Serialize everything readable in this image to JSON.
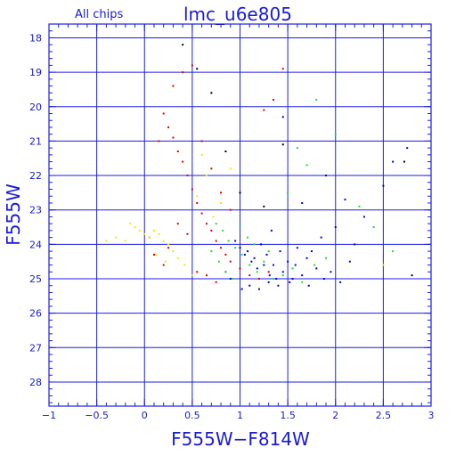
{
  "chart_data": {
    "type": "scatter",
    "title": "lmc_u6e805",
    "subtitle": "All chips",
    "xlabel": "F555W−F814W",
    "ylabel": "F555W",
    "xlim": [
      -1,
      3
    ],
    "ylim": [
      28.7,
      17.6
    ],
    "y_inverted": true,
    "grid": true,
    "x_ticks": [
      -1,
      -0.5,
      0,
      0.5,
      1,
      1.5,
      2,
      2.5,
      3
    ],
    "x_tick_labels": [
      "−1",
      "−0.5",
      "0",
      "0.5",
      "1",
      "1.5",
      "2",
      "2.5",
      "3"
    ],
    "y_ticks": [
      18,
      19,
      20,
      21,
      22,
      23,
      24,
      25,
      26,
      27,
      28
    ],
    "y_tick_labels": [
      "18",
      "19",
      "20",
      "21",
      "22",
      "23",
      "24",
      "25",
      "26",
      "27",
      "28"
    ],
    "colors": {
      "axis": "#1e1ee6",
      "text": "#1a1ad8",
      "blue": "#0000cc",
      "green": "#22dd22",
      "red": "#dd0000",
      "yellow": "#eeee00",
      "black": "#000000"
    },
    "series": [
      {
        "color": "blue",
        "x": [
          1.05,
          1.12,
          1.18,
          1.25,
          1.31,
          1.38,
          1.45,
          1.52,
          1.58,
          1.65,
          1.72,
          1.8,
          1.88,
          1.95,
          2.05,
          2.15,
          0.95,
          1.0,
          1.08,
          1.15,
          1.22,
          1.28,
          1.35,
          1.42,
          1.5,
          1.6,
          1.7,
          1.85,
          2.0,
          2.2,
          1.1,
          1.2,
          1.3,
          1.4,
          1.55,
          1.75,
          2.3,
          2.5,
          2.6,
          2.75,
          1.9,
          2.1,
          1.65,
          1.45,
          0.85,
          0.9,
          1.02,
          1.33
        ],
        "y": [
          24.3,
          24.5,
          24.7,
          24.6,
          24.9,
          25.0,
          24.8,
          25.1,
          24.6,
          24.9,
          25.2,
          24.7,
          25.0,
          24.8,
          25.1,
          24.5,
          23.9,
          24.1,
          24.2,
          24.4,
          24.0,
          24.3,
          24.6,
          24.2,
          24.5,
          24.1,
          24.4,
          23.8,
          23.5,
          24.0,
          25.2,
          25.3,
          25.1,
          25.2,
          25.0,
          24.2,
          23.2,
          22.3,
          21.6,
          21.2,
          22.0,
          22.7,
          22.8,
          20.3,
          24.8,
          25.0,
          25.3,
          23.6
        ]
      },
      {
        "color": "green",
        "x": [
          0.75,
          0.82,
          0.88,
          0.95,
          1.02,
          1.1,
          1.18,
          1.25,
          1.35,
          1.45,
          1.55,
          1.65,
          1.78,
          1.9,
          0.7,
          0.78,
          0.85,
          0.92,
          1.0,
          1.08,
          1.15,
          1.3,
          1.5,
          1.7,
          2.0,
          2.25,
          2.4,
          2.6,
          1.6,
          1.8
        ],
        "y": [
          23.4,
          23.6,
          23.9,
          24.1,
          24.3,
          24.6,
          24.8,
          24.5,
          25.0,
          24.9,
          24.7,
          25.1,
          24.6,
          24.4,
          24.2,
          24.5,
          24.8,
          25.0,
          23.5,
          23.8,
          24.0,
          24.2,
          22.5,
          21.7,
          20.8,
          22.9,
          23.5,
          24.2,
          21.2,
          19.8
        ]
      },
      {
        "color": "red",
        "x": [
          0.2,
          0.25,
          0.3,
          0.35,
          0.4,
          0.45,
          0.5,
          0.55,
          0.6,
          0.65,
          0.7,
          0.75,
          0.8,
          0.85,
          0.9,
          1.0,
          1.1,
          1.2,
          1.3,
          0.3,
          0.4,
          0.5,
          0.6,
          0.7,
          0.8,
          0.9,
          0.15,
          0.35,
          0.55,
          0.75,
          1.25,
          1.35,
          1.45,
          0.25,
          0.45,
          0.65,
          0.05,
          0.1,
          0.2
        ],
        "y": [
          20.2,
          20.6,
          20.9,
          21.3,
          21.6,
          22.0,
          22.4,
          22.8,
          23.1,
          23.4,
          23.6,
          23.9,
          24.1,
          24.3,
          24.5,
          24.7,
          24.9,
          25.0,
          24.8,
          19.4,
          19.0,
          18.8,
          21.0,
          21.8,
          22.5,
          23.0,
          21.0,
          23.4,
          24.8,
          25.1,
          20.1,
          19.8,
          18.9,
          24.1,
          23.7,
          24.9,
          23.8,
          24.3,
          24.6
        ]
      },
      {
        "color": "yellow",
        "x": [
          -0.1,
          -0.05,
          0.0,
          0.05,
          0.1,
          0.15,
          0.2,
          0.25,
          0.3,
          -0.15,
          -0.2,
          -0.3,
          -0.4,
          0.12,
          0.22,
          0.35,
          0.42,
          0.5,
          0.55,
          0.6,
          0.65,
          0.72,
          0.8,
          0.9,
          2.5
        ],
        "y": [
          23.5,
          23.6,
          23.7,
          23.8,
          23.6,
          23.7,
          23.9,
          24.0,
          24.2,
          23.4,
          23.9,
          23.8,
          23.9,
          24.3,
          24.5,
          24.4,
          24.6,
          24.9,
          22.6,
          21.4,
          22.0,
          23.2,
          22.8,
          21.8,
          24.6
        ]
      },
      {
        "color": "black",
        "x": [
          0.4,
          0.55,
          0.7,
          0.85,
          1.0,
          1.25,
          1.45,
          2.72,
          2.8
        ],
        "y": [
          18.2,
          18.9,
          19.6,
          21.3,
          22.5,
          22.9,
          21.1,
          21.6,
          24.9
        ]
      }
    ]
  }
}
